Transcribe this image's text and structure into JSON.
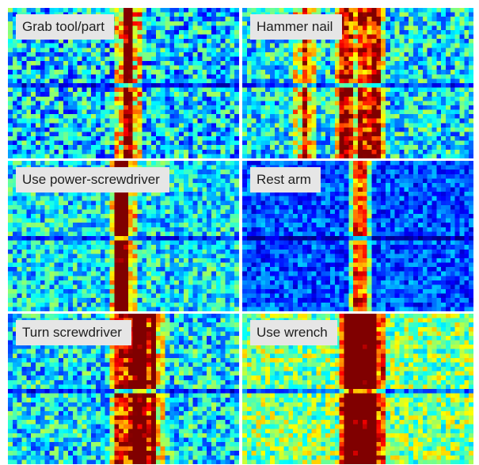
{
  "panels": [
    {
      "title": "Grab tool/part",
      "bands": [
        0.51
      ],
      "band_level": 0.72,
      "base": 0.33,
      "noise": 0.22
    },
    {
      "title": "Hammer nail",
      "bands": [
        0.26,
        0.43,
        0.5,
        0.56
      ],
      "band_level": 0.55,
      "base": 0.36,
      "noise": 0.2
    },
    {
      "title": "Use power-screwdriver",
      "bands": [
        0.47,
        0.5
      ],
      "band_level": 0.58,
      "base": 0.36,
      "noise": 0.18
    },
    {
      "title": "Rest arm",
      "bands": [
        0.5
      ],
      "band_level": 0.62,
      "base": 0.2,
      "noise": 0.13
    },
    {
      "title": "Turn screwdriver",
      "bands": [
        0.47,
        0.53,
        0.58,
        0.62
      ],
      "band_level": 0.55,
      "base": 0.36,
      "noise": 0.2
    },
    {
      "title": "Use wrench",
      "bands": [
        0.45,
        0.5,
        0.55
      ],
      "band_level": 0.72,
      "base": 0.5,
      "noise": 0.18
    }
  ],
  "colormap": "jet"
}
